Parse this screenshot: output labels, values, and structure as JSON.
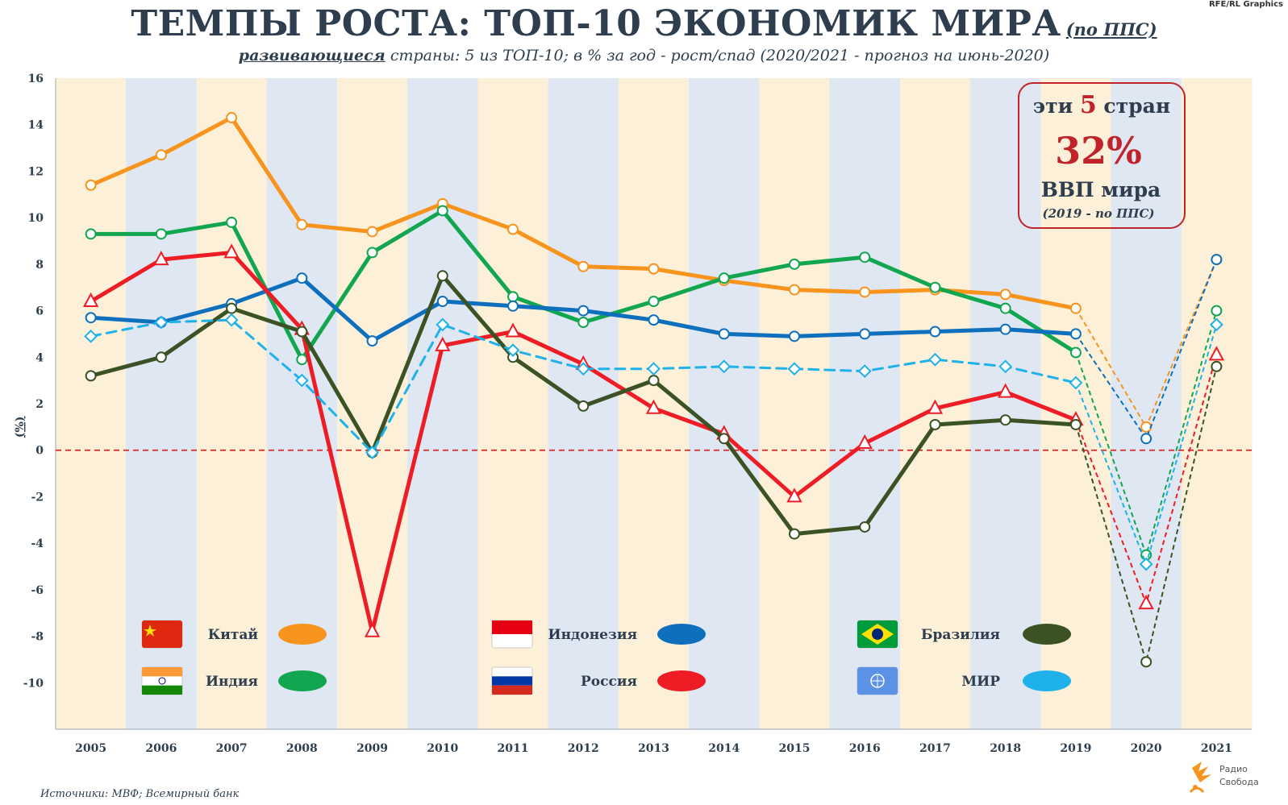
{
  "header": {
    "title": "ТЕМПЫ РОСТА: ТОП-10 ЭКОНОМИК МИРА",
    "title_note": "(по ППС)",
    "subtitle_lead": "развивающиеся",
    "subtitle_rest": " страны: 5 из ТОП-10; в % за год - рост/спад (2020/2021 - прогноз на июнь-2020)",
    "credit": "RFE/RL Graphics"
  },
  "callout": {
    "line1_pre": "эти ",
    "line1_num": "5",
    "line1_post": " стран",
    "big": "32%",
    "line3": "ВВП мира",
    "line4": "(2019 - по ППС)"
  },
  "footer": {
    "source": "Источники: МВФ; Всемирный банк",
    "logo_line1": "Радио",
    "logo_line2": "Свобода"
  },
  "colors": {
    "bg_warm": "#fdf0d8",
    "bg_cool": "#dfe7f3",
    "china": "#f7941d",
    "india": "#12a650",
    "indonesia": "#0e6fbd",
    "russia": "#ee1c25",
    "brazil": "#3a5224",
    "world": "#1fb1ea",
    "zero_line": "#d02a2a"
  },
  "chart_data": {
    "type": "line",
    "x": [
      "2005",
      "2006",
      "2007",
      "2008",
      "2009",
      "2010",
      "2011",
      "2012",
      "2013",
      "2014",
      "2015",
      "2016",
      "2017",
      "2018",
      "2019",
      "2020",
      "2021"
    ],
    "ylabel": "(%)",
    "ylim": [
      -12,
      16
    ],
    "yticks": [
      16,
      14,
      12,
      10,
      8,
      6,
      4,
      2,
      0,
      -2,
      -4,
      -6,
      -8,
      -10
    ],
    "forecast_from_index": 14,
    "grid": false,
    "legend_position": "bottom",
    "series": [
      {
        "name": "Китай",
        "key": "china",
        "marker": "circle",
        "dashed": false,
        "values": [
          11.4,
          12.7,
          14.3,
          9.7,
          9.4,
          10.6,
          9.5,
          7.9,
          7.8,
          7.3,
          6.9,
          6.8,
          6.9,
          6.7,
          6.1,
          1.0,
          8.2
        ]
      },
      {
        "name": "Индия",
        "key": "india",
        "marker": "circle",
        "dashed": false,
        "values": [
          9.3,
          9.3,
          9.8,
          3.9,
          8.5,
          10.3,
          6.6,
          5.5,
          6.4,
          7.4,
          8.0,
          8.3,
          7.0,
          6.1,
          4.2,
          -4.5,
          6.0
        ]
      },
      {
        "name": "Индонезия",
        "key": "indonesia",
        "marker": "circle",
        "dashed": false,
        "values": [
          5.7,
          5.5,
          6.3,
          7.4,
          4.7,
          6.4,
          6.2,
          6.0,
          5.6,
          5.0,
          4.9,
          5.0,
          5.1,
          5.2,
          5.0,
          0.5,
          8.2
        ]
      },
      {
        "name": "Россия",
        "key": "russia",
        "marker": "triangle",
        "dashed": false,
        "values": [
          6.4,
          8.2,
          8.5,
          5.2,
          -7.8,
          4.5,
          5.1,
          3.7,
          1.8,
          0.7,
          -2.0,
          0.3,
          1.8,
          2.5,
          1.3,
          -6.6,
          4.1
        ]
      },
      {
        "name": "Бразилия",
        "key": "brazil",
        "marker": "circle",
        "dashed": false,
        "values": [
          3.2,
          4.0,
          6.1,
          5.1,
          -0.1,
          7.5,
          4.0,
          1.9,
          3.0,
          0.5,
          -3.6,
          -3.3,
          1.1,
          1.3,
          1.1,
          -9.1,
          3.6
        ]
      },
      {
        "name": "МИР",
        "key": "world",
        "marker": "diamond",
        "dashed": true,
        "values": [
          4.9,
          5.5,
          5.6,
          3.0,
          -0.1,
          5.4,
          4.3,
          3.5,
          3.5,
          3.6,
          3.5,
          3.4,
          3.9,
          3.6,
          2.9,
          -4.9,
          5.4
        ]
      }
    ],
    "legend": [
      {
        "label": "Китай",
        "key": "china",
        "flag": "china"
      },
      {
        "label": "Индия",
        "key": "india",
        "flag": "india"
      },
      {
        "label": "Индонезия",
        "key": "indonesia",
        "flag": "indonesia"
      },
      {
        "label": "Россия",
        "key": "russia",
        "flag": "russia"
      },
      {
        "label": "Бразилия",
        "key": "brazil",
        "flag": "brazil"
      },
      {
        "label": "МИР",
        "key": "world",
        "flag": "un"
      }
    ]
  }
}
